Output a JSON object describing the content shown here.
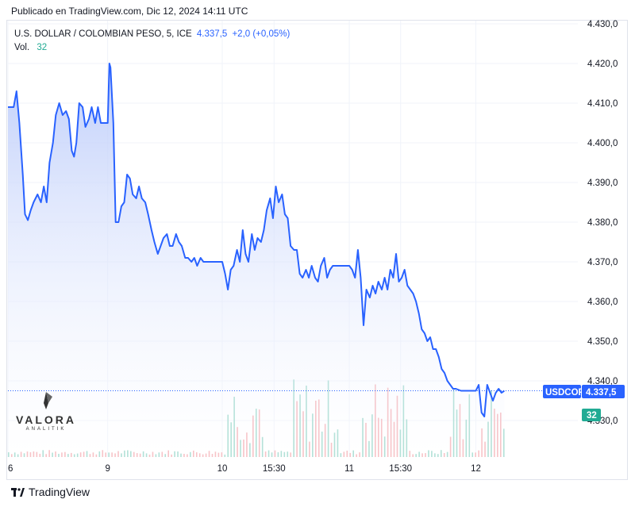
{
  "header": {
    "published": "Publicado en TradingView.com, Dic 12, 2024 14:11 UTC"
  },
  "legend": {
    "symbol": "U.S. DOLLAR / COLOMBIAN PESO, 5, ICE",
    "last": "4.337,5",
    "change": "+2,0 (+0,05%)",
    "volume_label": "Vol.",
    "volume_value": "32"
  },
  "tags": {
    "ticker": "USDCOP",
    "price": "4.337,5",
    "volume": "32"
  },
  "watermark": {
    "brand": "VALORA",
    "sub": "ANALITIK"
  },
  "footer": {
    "brand": "TradingView"
  },
  "colors": {
    "line": "#2962ff",
    "area_top": "#c3d0fb",
    "vol_up": "#22ab94",
    "vol_down": "#f7525f",
    "tag_bg": "#2962ff",
    "vol_tag_bg": "#22ab94"
  },
  "chart_data": {
    "type": "area",
    "y_ticks": [
      "4.430,0",
      "4.420,0",
      "4.410,0",
      "4.400,0",
      "4.390,0",
      "4.380,0",
      "4.370,0",
      "4.360,0",
      "4.350,0",
      "4.340,0",
      "4.330,0"
    ],
    "y_tick_values": [
      4430,
      4420,
      4410,
      4400,
      4390,
      4380,
      4370,
      4360,
      4350,
      4340,
      4330
    ],
    "ylim": [
      4324.7,
      4431
    ],
    "x_ticks": [
      {
        "label": "6",
        "at": 0
      },
      {
        "label": "9",
        "at": 17.5
      },
      {
        "label": "10",
        "at": 37.6
      },
      {
        "label": "15:30",
        "at": 46.7
      },
      {
        "label": "11",
        "at": 59.9
      },
      {
        "label": "15:30",
        "at": 68.9
      },
      {
        "label": "12",
        "at": 82.1
      }
    ],
    "x_max": 100,
    "price_line": 4337.5,
    "series": [
      {
        "points": [
          [
            0,
            4409
          ],
          [
            1.0,
            4409
          ],
          [
            1.5,
            4413
          ],
          [
            2.0,
            4405
          ],
          [
            2.6,
            4392
          ],
          [
            3.0,
            4382
          ],
          [
            3.5,
            4380.5
          ],
          [
            4.0,
            4383
          ],
          [
            4.5,
            4385
          ],
          [
            5.2,
            4387
          ],
          [
            5.8,
            4385
          ],
          [
            6.3,
            4389
          ],
          [
            6.8,
            4385
          ],
          [
            7.3,
            4395
          ],
          [
            7.9,
            4400
          ],
          [
            8.4,
            4407
          ],
          [
            9.0,
            4410
          ],
          [
            9.6,
            4407
          ],
          [
            10.2,
            4408
          ],
          [
            10.7,
            4406
          ],
          [
            11.2,
            4398
          ],
          [
            11.6,
            4396.5
          ],
          [
            12.0,
            4400
          ],
          [
            12.5,
            4410
          ],
          [
            13.1,
            4409
          ],
          [
            13.6,
            4404
          ],
          [
            14.2,
            4406
          ],
          [
            14.7,
            4409
          ],
          [
            15.3,
            4405
          ],
          [
            15.8,
            4409
          ],
          [
            16.3,
            4405
          ],
          [
            16.9,
            4405
          ],
          [
            17.5,
            4405
          ],
          [
            17.8,
            4420
          ],
          [
            18.0,
            4419
          ],
          [
            18.5,
            4405
          ],
          [
            18.9,
            4380
          ],
          [
            19.4,
            4380
          ],
          [
            19.9,
            4384
          ],
          [
            20.4,
            4385
          ],
          [
            20.9,
            4392
          ],
          [
            21.4,
            4391
          ],
          [
            21.9,
            4387
          ],
          [
            22.5,
            4386
          ],
          [
            23.0,
            4389
          ],
          [
            23.5,
            4386
          ],
          [
            24.1,
            4385
          ],
          [
            24.6,
            4382
          ],
          [
            25.2,
            4378
          ],
          [
            25.7,
            4375
          ],
          [
            26.3,
            4372
          ],
          [
            26.8,
            4374
          ],
          [
            27.3,
            4376
          ],
          [
            27.9,
            4377
          ],
          [
            28.4,
            4374
          ],
          [
            28.9,
            4374
          ],
          [
            29.5,
            4377
          ],
          [
            30.0,
            4375
          ],
          [
            30.5,
            4374
          ],
          [
            31.1,
            4371
          ],
          [
            31.6,
            4371
          ],
          [
            32.2,
            4370
          ],
          [
            32.7,
            4371
          ],
          [
            33.2,
            4369
          ],
          [
            33.8,
            4371
          ],
          [
            34.3,
            4370
          ],
          [
            34.8,
            4370
          ],
          [
            36.0,
            4370
          ],
          [
            37.6,
            4370
          ],
          [
            38.1,
            4367
          ],
          [
            38.6,
            4363
          ],
          [
            39.1,
            4368
          ],
          [
            39.6,
            4369
          ],
          [
            40.2,
            4373
          ],
          [
            40.7,
            4370
          ],
          [
            41.2,
            4378
          ],
          [
            41.7,
            4372
          ],
          [
            42.2,
            4370
          ],
          [
            42.8,
            4377
          ],
          [
            43.3,
            4373
          ],
          [
            43.8,
            4376
          ],
          [
            44.4,
            4375
          ],
          [
            44.9,
            4378
          ],
          [
            45.4,
            4383
          ],
          [
            46.0,
            4386
          ],
          [
            46.5,
            4381
          ],
          [
            47.0,
            4389
          ],
          [
            47.5,
            4385
          ],
          [
            48.1,
            4387
          ],
          [
            48.6,
            4382
          ],
          [
            49.1,
            4381
          ],
          [
            49.6,
            4374
          ],
          [
            50.2,
            4373
          ],
          [
            50.7,
            4373
          ],
          [
            51.2,
            4367
          ],
          [
            51.7,
            4366
          ],
          [
            52.3,
            4368
          ],
          [
            52.8,
            4366
          ],
          [
            53.3,
            4369
          ],
          [
            53.9,
            4366
          ],
          [
            54.4,
            4365
          ],
          [
            54.9,
            4369
          ],
          [
            55.5,
            4371
          ],
          [
            56.0,
            4366
          ],
          [
            56.5,
            4368
          ],
          [
            57.0,
            4369
          ],
          [
            57.6,
            4369
          ],
          [
            58.5,
            4369
          ],
          [
            59.9,
            4369
          ],
          [
            60.4,
            4368
          ],
          [
            60.9,
            4366
          ],
          [
            61.4,
            4373
          ],
          [
            61.9,
            4366
          ],
          [
            62.4,
            4354
          ],
          [
            62.9,
            4363
          ],
          [
            63.5,
            4361
          ],
          [
            64.0,
            4364
          ],
          [
            64.5,
            4362
          ],
          [
            65.0,
            4365
          ],
          [
            65.6,
            4363
          ],
          [
            66.1,
            4366
          ],
          [
            66.6,
            4363
          ],
          [
            67.1,
            4368
          ],
          [
            67.6,
            4366
          ],
          [
            68.1,
            4372
          ],
          [
            68.6,
            4365
          ],
          [
            69.1,
            4366
          ],
          [
            69.6,
            4368
          ],
          [
            70.1,
            4364
          ],
          [
            70.6,
            4363
          ],
          [
            71.1,
            4362
          ],
          [
            71.6,
            4360
          ],
          [
            72.1,
            4357
          ],
          [
            72.6,
            4353
          ],
          [
            73.1,
            4352
          ],
          [
            73.6,
            4350
          ],
          [
            74.1,
            4351
          ],
          [
            74.6,
            4348
          ],
          [
            75.1,
            4348
          ],
          [
            75.6,
            4346
          ],
          [
            76.1,
            4343
          ],
          [
            76.6,
            4342
          ],
          [
            77.1,
            4340
          ],
          [
            77.6,
            4339
          ],
          [
            78.1,
            4338
          ],
          [
            78.6,
            4338
          ],
          [
            79.5,
            4337.5
          ],
          [
            80.5,
            4337.5
          ],
          [
            81.5,
            4337.5
          ],
          [
            82.1,
            4337.5
          ],
          [
            82.6,
            4339
          ],
          [
            83.1,
            4332
          ],
          [
            83.6,
            4331
          ],
          [
            84.1,
            4339
          ],
          [
            84.6,
            4337
          ],
          [
            85.1,
            4335
          ],
          [
            85.6,
            4337
          ],
          [
            86.1,
            4338
          ],
          [
            86.6,
            4337
          ],
          [
            87.1,
            4337.5
          ]
        ]
      }
    ],
    "volume": {
      "max": 100,
      "up_spans": [
        [
          38,
          45
        ],
        [
          50,
          58
        ],
        [
          62,
          70
        ],
        [
          77,
          81
        ],
        [
          83,
          87
        ]
      ],
      "bars_note": ""
    }
  }
}
